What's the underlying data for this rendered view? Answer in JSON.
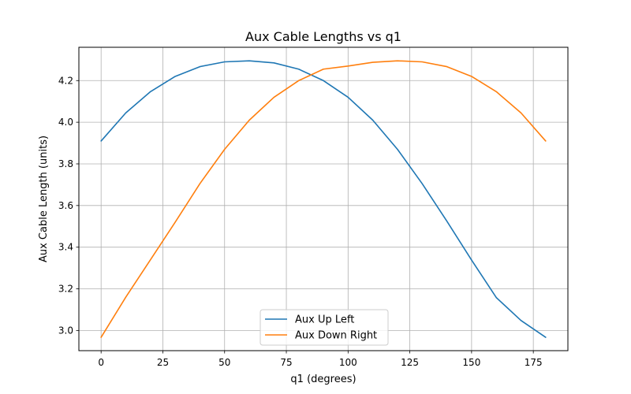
{
  "chart_data": {
    "type": "line",
    "title": "Aux Cable Lengths vs q1",
    "xlabel": "q1 (degrees)",
    "ylabel": "Aux Cable Length (units)",
    "xlim": [
      -9,
      189
    ],
    "ylim": [
      2.903,
      4.36
    ],
    "xticks": [
      0,
      25,
      50,
      75,
      100,
      125,
      150,
      175
    ],
    "yticks": [
      3.0,
      3.2,
      3.4,
      3.6,
      3.8,
      4.0,
      4.2
    ],
    "grid": true,
    "legend_position": "lower center",
    "x": [
      0,
      10,
      20,
      30,
      40,
      50,
      60,
      70,
      80,
      90,
      100,
      110,
      120,
      130,
      140,
      150,
      160,
      170,
      180
    ],
    "series": [
      {
        "name": "Aux Up Left",
        "color": "#1f77b4",
        "values": [
          3.91,
          4.045,
          4.147,
          4.22,
          4.267,
          4.29,
          4.295,
          4.285,
          4.255,
          4.2,
          4.12,
          4.01,
          3.87,
          3.705,
          3.525,
          3.338,
          3.158,
          3.048,
          2.967
        ]
      },
      {
        "name": "Aux Down Right",
        "color": "#ff7f0e",
        "values": [
          2.967,
          3.16,
          3.34,
          3.52,
          3.705,
          3.87,
          4.01,
          4.12,
          4.2,
          4.255,
          4.27,
          4.288,
          4.295,
          4.29,
          4.267,
          4.22,
          4.147,
          4.045,
          3.91
        ]
      }
    ]
  }
}
